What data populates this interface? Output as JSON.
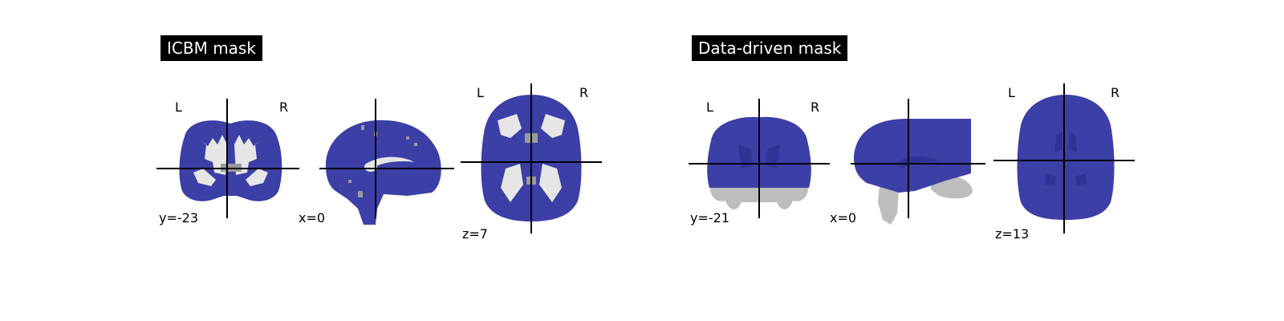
{
  "panels": [
    {
      "title": "ICBM mask",
      "orientation_left": "L",
      "orientation_right": "R",
      "cuts": {
        "coronal": "y=-23",
        "sagittal": "x=0",
        "axial": "z=7"
      }
    },
    {
      "title": "Data-driven mask",
      "orientation_left": "L",
      "orientation_right": "R",
      "cuts": {
        "coronal": "y=-21",
        "sagittal": "x=0",
        "axial": "z=13"
      }
    }
  ],
  "colors": {
    "mask_overlay": "#3b3fa6",
    "mask_overlay_dark": "#2f3395",
    "anatomy_light": "#e6e6e6",
    "anatomy_gray": "#9a9a9a",
    "crosshair": "#000000",
    "title_background": "#000000",
    "title_text": "#ffffff"
  }
}
